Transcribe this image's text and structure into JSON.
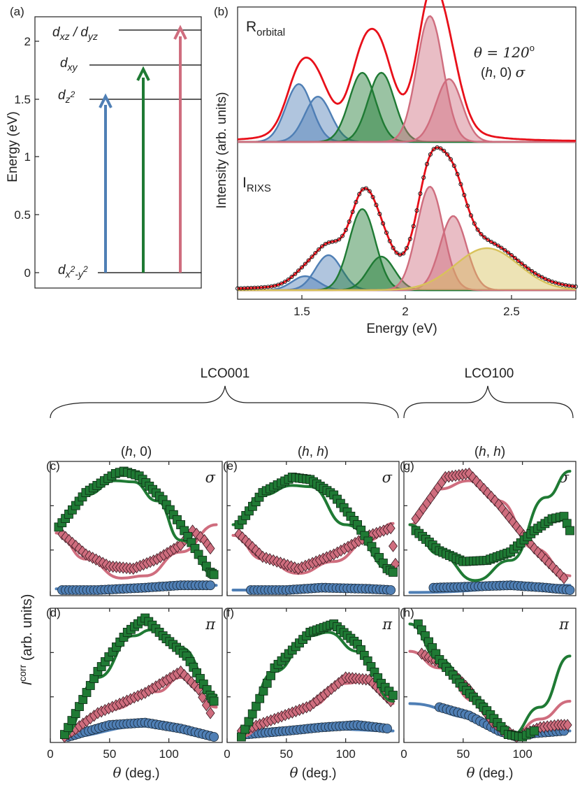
{
  "colors": {
    "blue": "#4f7fb5",
    "green": "#1f7a34",
    "pink": "#cf6d7e",
    "yellow": "#d8c25a",
    "red": "#e8101a"
  },
  "chart_data": [
    {
      "panel": "(a)",
      "type": "level-diagram",
      "ylabel": "Energy (eV)",
      "ylim": [
        -0.2,
        2.3
      ],
      "yticks": [
        "0",
        "0.5",
        "1",
        "1.5",
        "2"
      ],
      "levels": [
        {
          "name": "d_xz / d_yz",
          "energy": 2.1
        },
        {
          "name": "d_xy",
          "energy": 1.8
        },
        {
          "name": "d_z2",
          "energy": 1.5
        },
        {
          "name": "d_x2-y2",
          "energy": 0.0
        }
      ],
      "level_texts": [
        "d",
        "xz",
        " / d",
        "yz",
        "d",
        "xy",
        "d",
        "z",
        "2",
        "d",
        "x",
        "2",
        "-y",
        "2"
      ],
      "arrows": [
        {
          "from": 0.0,
          "to": 1.5,
          "color": "blue"
        },
        {
          "from": 0.0,
          "to": 1.8,
          "color": "green"
        },
        {
          "from": 0.0,
          "to": 2.1,
          "color": "pink"
        }
      ]
    },
    {
      "panel": "(b)",
      "type": "line",
      "xlabel": "Energy (eV)",
      "ylabel": "Intensity (arb. units)",
      "xlim": [
        1.2,
        2.8
      ],
      "xticks": [
        "1.5",
        "2",
        "2.5"
      ],
      "upper_label": [
        "R",
        "orbital"
      ],
      "lower_label": [
        "I",
        "RIXS"
      ],
      "annotation": [
        "θ = 120",
        "o",
        "(",
        "h",
        ", 0) ",
        "σ"
      ],
      "upper_components": [
        {
          "color": "blue",
          "center": 1.49,
          "amplitude": 0.46
        },
        {
          "color": "blue",
          "center": 1.58,
          "amplitude": 0.36
        },
        {
          "color": "green",
          "center": 1.79,
          "amplitude": 0.55
        },
        {
          "color": "green",
          "center": 1.88,
          "amplitude": 0.55
        },
        {
          "color": "pink",
          "center": 2.11,
          "amplitude": 1.0
        },
        {
          "color": "pink",
          "center": 2.2,
          "amplitude": 0.5
        }
      ],
      "lower_components": [
        {
          "color": "blue",
          "center": 1.52,
          "amplitude": 0.1
        },
        {
          "color": "blue",
          "center": 1.63,
          "amplitude": 0.25
        },
        {
          "color": "green",
          "center": 1.79,
          "amplitude": 0.58
        },
        {
          "color": "green",
          "center": 1.88,
          "amplitude": 0.24
        },
        {
          "color": "pink",
          "center": 2.11,
          "amplitude": 0.74
        },
        {
          "color": "pink",
          "center": 2.22,
          "amplitude": 0.53
        },
        {
          "color": "yellow",
          "center": 2.38,
          "amplitude": 0.3
        }
      ]
    }
  ],
  "groups": {
    "left": "LCO001",
    "right": "LCO100"
  },
  "theta_panels": {
    "xlabel": "θ (deg.)",
    "ylabel": "I",
    "ylabel_sup": "corr",
    "ylabel_tail": " (arb. units)",
    "xlim": [
      0,
      145
    ],
    "xticks": [
      "0",
      "50",
      "100"
    ],
    "panels": [
      {
        "tag": "(c)",
        "title": [
          "(",
          "h",
          ", 0)"
        ],
        "pol": "σ",
        "green": {
          "fit": [
            [
              5,
              0.55
            ],
            [
              30,
              0.8
            ],
            [
              55,
              0.92
            ],
            [
              70,
              0.91
            ],
            [
              90,
              0.75
            ],
            [
              110,
              0.42
            ],
            [
              140,
              0.12
            ]
          ],
          "pts": [
            [
              7,
              0.53
            ],
            [
              30,
              0.82
            ],
            [
              55,
              0.98
            ],
            [
              62,
              1.0
            ],
            [
              75,
              0.96
            ],
            [
              95,
              0.76
            ],
            [
              110,
              0.55
            ],
            [
              125,
              0.3
            ],
            [
              135,
              0.15
            ],
            [
              138,
              0.13
            ]
          ]
        },
        "pink": {
          "fit": [
            [
              5,
              0.48
            ],
            [
              30,
              0.26
            ],
            [
              60,
              0.1
            ],
            [
              80,
              0.12
            ],
            [
              110,
              0.32
            ],
            [
              140,
              0.55
            ]
          ],
          "pts": [
            [
              10,
              0.47
            ],
            [
              30,
              0.3
            ],
            [
              50,
              0.2
            ],
            [
              70,
              0.18
            ],
            [
              90,
              0.26
            ],
            [
              110,
              0.38
            ],
            [
              120,
              0.5
            ],
            [
              130,
              0.42
            ],
            [
              135,
              0.35
            ]
          ]
        },
        "blue": {
          "fit": [
            [
              5,
              0.01
            ],
            [
              140,
              0.04
            ]
          ],
          "pts": [
            [
              10,
              0.0
            ],
            [
              40,
              0.0
            ],
            [
              80,
              0.02
            ],
            [
              110,
              0.04
            ],
            [
              135,
              0.04
            ]
          ]
        }
      },
      {
        "tag": "(e)",
        "title": [
          "(",
          "h",
          ", ",
          "h",
          ")"
        ],
        "pol": "σ",
        "green": {
          "fit": [
            [
              5,
              0.55
            ],
            [
              30,
              0.8
            ],
            [
              55,
              0.88
            ],
            [
              70,
              0.87
            ],
            [
              100,
              0.55
            ],
            [
              140,
              0.16
            ]
          ],
          "pts": [
            [
              10,
              0.55
            ],
            [
              30,
              0.82
            ],
            [
              55,
              0.95
            ],
            [
              70,
              0.93
            ],
            [
              90,
              0.8
            ],
            [
              110,
              0.55
            ],
            [
              125,
              0.32
            ],
            [
              135,
              0.18
            ],
            [
              140,
              0.15
            ]
          ]
        },
        "pink": {
          "fit": [
            [
              5,
              0.46
            ],
            [
              30,
              0.26
            ],
            [
              60,
              0.14
            ],
            [
              90,
              0.24
            ],
            [
              120,
              0.42
            ],
            [
              140,
              0.56
            ]
          ],
          "pts": [
            [
              10,
              0.47
            ],
            [
              30,
              0.28
            ],
            [
              60,
              0.18
            ],
            [
              90,
              0.3
            ],
            [
              120,
              0.46
            ],
            [
              138,
              0.52
            ],
            [
              142,
              0.22
            ]
          ]
        },
        "blue": {
          "fit": [
            [
              5,
              0.0
            ],
            [
              140,
              0.02
            ]
          ],
          "pts": [
            [
              20,
              0.0
            ],
            [
              50,
              0.0
            ],
            [
              80,
              0.02
            ],
            [
              120,
              0.01
            ],
            [
              138,
              0.0
            ]
          ]
        }
      },
      {
        "tag": "(g)",
        "title": [
          "(",
          "h",
          ", ",
          "h",
          ")"
        ],
        "pol": "σ",
        "green": {
          "fit": [
            [
              5,
              0.55
            ],
            [
              30,
              0.3
            ],
            [
              60,
              0.08
            ],
            [
              90,
              0.25
            ],
            [
              120,
              0.78
            ],
            [
              140,
              1.0
            ]
          ],
          "pts": [
            [
              10,
              0.5
            ],
            [
              30,
              0.33
            ],
            [
              50,
              0.24
            ],
            [
              70,
              0.25
            ],
            [
              90,
              0.32
            ],
            [
              110,
              0.5
            ],
            [
              125,
              0.6
            ],
            [
              135,
              0.62
            ],
            [
              140,
              0.5
            ]
          ]
        },
        "pink": {
          "fit": [
            [
              5,
              0.55
            ],
            [
              30,
              0.85
            ],
            [
              55,
              0.92
            ],
            [
              80,
              0.75
            ],
            [
              110,
              0.35
            ],
            [
              140,
              0.12
            ]
          ],
          "pts": [
            [
              10,
              0.6
            ],
            [
              35,
              0.95
            ],
            [
              55,
              0.98
            ],
            [
              80,
              0.72
            ],
            [
              110,
              0.35
            ],
            [
              135,
              0.1
            ]
          ]
        },
        "blue": {
          "fit": [
            [
              5,
              -0.02
            ],
            [
              140,
              0.04
            ]
          ],
          "pts": [
            [
              25,
              0.02
            ],
            [
              60,
              0.03
            ],
            [
              90,
              0.04
            ],
            [
              120,
              0.02
            ],
            [
              140,
              0.0
            ]
          ]
        }
      },
      {
        "tag": "(d)",
        "title": [],
        "pol": "π",
        "green": {
          "fit": [
            [
              10,
              0.0
            ],
            [
              40,
              0.5
            ],
            [
              70,
              0.85
            ],
            [
              85,
              0.9
            ],
            [
              110,
              0.75
            ],
            [
              140,
              0.35
            ]
          ],
          "pts": [
            [
              12,
              0.02
            ],
            [
              40,
              0.55
            ],
            [
              65,
              0.88
            ],
            [
              80,
              1.0
            ],
            [
              95,
              0.85
            ],
            [
              115,
              0.68
            ],
            [
              135,
              0.35
            ],
            [
              138,
              0.3
            ]
          ]
        },
        "pink": {
          "fit": [
            [
              10,
              0.0
            ],
            [
              50,
              0.23
            ],
            [
              90,
              0.38
            ],
            [
              110,
              0.5
            ],
            [
              140,
              0.25
            ]
          ],
          "pts": [
            [
              12,
              0.0
            ],
            [
              40,
              0.2
            ],
            [
              80,
              0.37
            ],
            [
              110,
              0.55
            ],
            [
              125,
              0.4
            ],
            [
              135,
              0.2
            ]
          ]
        },
        "blue": {
          "fit": [
            [
              10,
              0.0
            ],
            [
              80,
              0.09
            ],
            [
              140,
              0.02
            ]
          ],
          "pts": [
            [
              15,
              0.0
            ],
            [
              50,
              0.1
            ],
            [
              80,
              0.12
            ],
            [
              110,
              0.07
            ],
            [
              138,
              0.0
            ]
          ]
        }
      },
      {
        "tag": "(f)",
        "title": [],
        "pol": "π",
        "green": {
          "fit": [
            [
              10,
              0.0
            ],
            [
              40,
              0.55
            ],
            [
              70,
              0.85
            ],
            [
              85,
              0.88
            ],
            [
              110,
              0.72
            ],
            [
              140,
              0.3
            ]
          ],
          "pts": [
            [
              12,
              0.0
            ],
            [
              40,
              0.58
            ],
            [
              70,
              0.88
            ],
            [
              90,
              0.95
            ],
            [
              110,
              0.78
            ],
            [
              130,
              0.45
            ],
            [
              140,
              0.35
            ]
          ]
        },
        "pink": {
          "fit": [
            [
              10,
              0.0
            ],
            [
              40,
              0.16
            ],
            [
              70,
              0.26
            ],
            [
              100,
              0.45
            ],
            [
              120,
              0.48
            ],
            [
              140,
              0.28
            ]
          ],
          "pts": [
            [
              12,
              0.05
            ],
            [
              40,
              0.15
            ],
            [
              70,
              0.26
            ],
            [
              100,
              0.5
            ],
            [
              120,
              0.48
            ],
            [
              138,
              0.3
            ]
          ]
        },
        "blue": {
          "fit": [
            [
              10,
              0.0
            ],
            [
              80,
              0.07
            ],
            [
              140,
              0.05
            ]
          ],
          "pts": [
            [
              15,
              0.02
            ],
            [
              50,
              0.05
            ],
            [
              80,
              0.08
            ],
            [
              110,
              0.1
            ],
            [
              135,
              0.07
            ]
          ]
        }
      },
      {
        "tag": "(h)",
        "title": [],
        "pol": "π",
        "green": {
          "fit": [
            [
              5,
              0.95
            ],
            [
              30,
              0.65
            ],
            [
              60,
              0.32
            ],
            [
              90,
              0.01
            ],
            [
              115,
              0.25
            ],
            [
              140,
              0.68
            ]
          ],
          "pts": [
            [
              12,
              0.95
            ],
            [
              30,
              0.65
            ],
            [
              50,
              0.42
            ],
            [
              70,
              0.22
            ],
            [
              88,
              0.02
            ],
            [
              100,
              0.0
            ],
            [
              110,
              0.05
            ]
          ]
        },
        "pink": {
          "fit": [
            [
              5,
              0.72
            ],
            [
              30,
              0.58
            ],
            [
              60,
              0.3
            ],
            [
              90,
              0.0
            ],
            [
              115,
              0.15
            ],
            [
              140,
              0.3
            ]
          ],
          "pts": [
            [
              15,
              0.7
            ],
            [
              35,
              0.6
            ],
            [
              55,
              0.4
            ],
            [
              75,
              0.12
            ],
            [
              95,
              0.0
            ],
            [
              115,
              0.08
            ],
            [
              130,
              0.1
            ],
            [
              138,
              0.1
            ]
          ]
        },
        "blue": {
          "fit": [
            [
              5,
              0.28
            ],
            [
              60,
              0.16
            ],
            [
              90,
              0.02
            ],
            [
              140,
              0.05
            ]
          ],
          "pts": [
            [
              30,
              0.25
            ],
            [
              55,
              0.18
            ],
            [
              80,
              0.05
            ],
            [
              95,
              0.0
            ],
            [
              110,
              0.03
            ],
            [
              135,
              0.05
            ]
          ]
        }
      }
    ]
  }
}
